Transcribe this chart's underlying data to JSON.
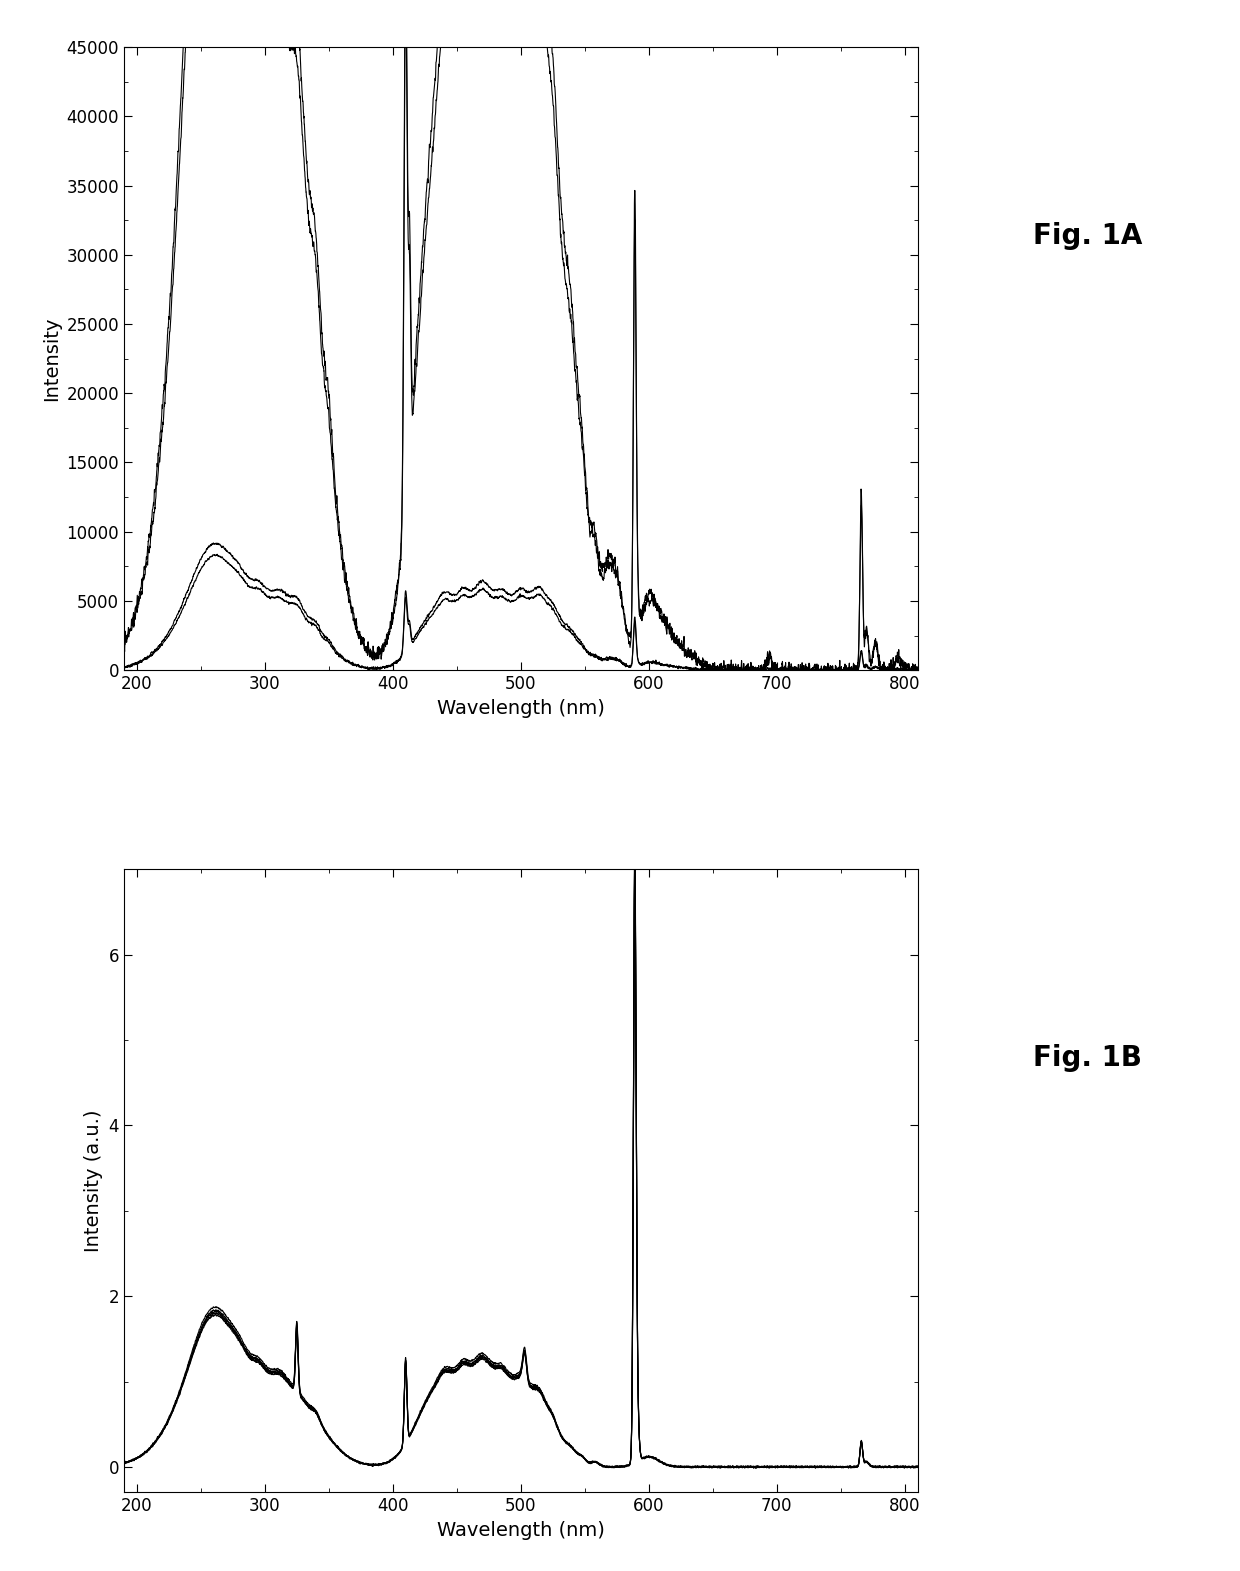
{
  "fig_A_label": "Fig. 1A",
  "fig_B_label": "Fig. 1B",
  "xlabel": "Wavelength (nm)",
  "ylabel_A": "Intensity",
  "ylabel_B": "Intensity (a.u.)",
  "xlim": [
    190,
    810
  ],
  "ylim_A": [
    0,
    45000
  ],
  "ylim_B": [
    -0.3,
    7
  ],
  "xticks_A": [
    200,
    300,
    400,
    500,
    600,
    700,
    800
  ],
  "xticks_B": [
    200,
    300,
    400,
    500,
    600,
    700,
    800
  ],
  "yticks_A": [
    0,
    5000,
    10000,
    15000,
    20000,
    25000,
    30000,
    35000,
    40000,
    45000
  ],
  "yticks_B": [
    0,
    2,
    4,
    6
  ],
  "line_color": "#000000",
  "background_color": "#ffffff",
  "label_fontsize": 14,
  "tick_fontsize": 12
}
